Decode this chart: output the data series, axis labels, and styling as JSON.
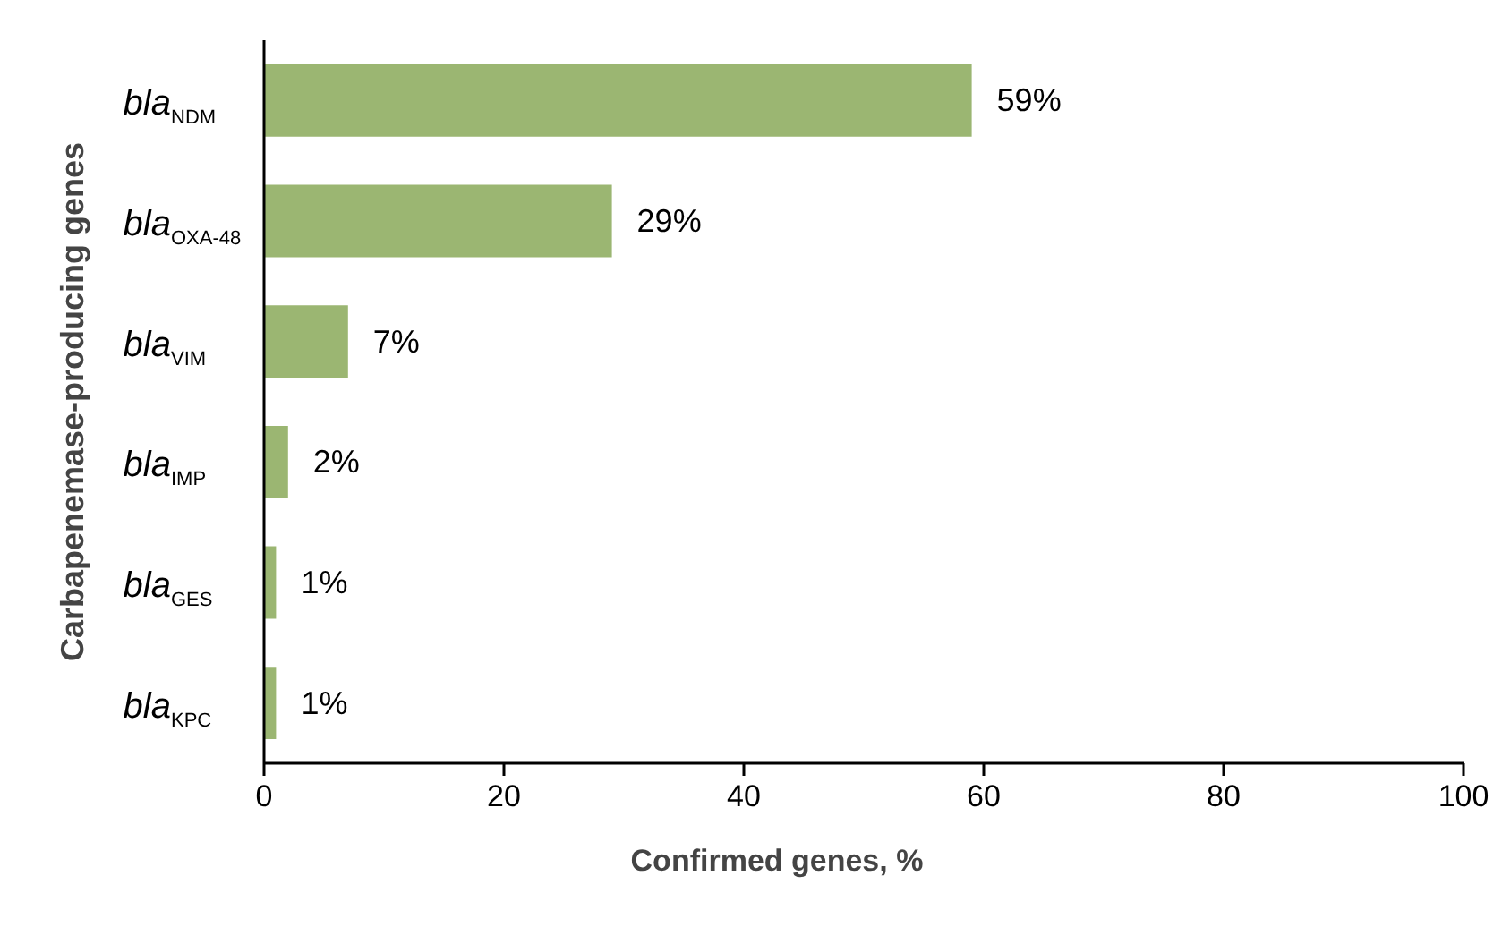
{
  "chart_data": {
    "type": "bar",
    "orientation": "horizontal",
    "xlabel": "Confirmed genes, %",
    "ylabel": "Carbapenemase-producing genes",
    "categories": [
      "bla$_{NDM}$",
      "bla$_{OXA-48}$",
      "bla$_{VIM}$",
      "bla$_{IMP}$",
      "bla$_{GES}$",
      "bla$_{KPC}$"
    ],
    "values": [
      59,
      29,
      7,
      2,
      1,
      1
    ],
    "value_labels": [
      "59%",
      "29%",
      "7%",
      "2%",
      "1%",
      "1%"
    ],
    "color": "#9bb672",
    "xlim": [
      0,
      100
    ],
    "xticks": [
      0,
      20,
      40,
      60,
      80,
      100
    ],
    "grid": false
  }
}
